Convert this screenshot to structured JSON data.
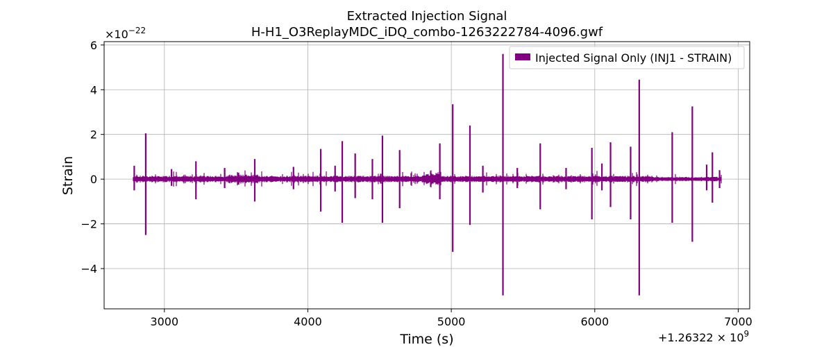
{
  "chart_data": {
    "type": "line",
    "title": "Extracted Injection Signal",
    "subtitle": "H-H1_O3ReplayMDC_iDQ_combo-1263222784-4096.gwf",
    "xlabel": "Time (s)",
    "ylabel": "Strain",
    "y_scale_label": "×10",
    "y_scale_exp": "−22",
    "x_offset_label": "+1.26322 × 10",
    "x_offset_exp": "9",
    "xlim": [
      2580,
      7080
    ],
    "ylim": [
      -5.8,
      6.15
    ],
    "xticks": [
      3000,
      4000,
      5000,
      6000,
      7000
    ],
    "xtick_labels": [
      "3000",
      "4000",
      "5000",
      "6000",
      "7000"
    ],
    "yticks": [
      -4,
      -2,
      0,
      2,
      4,
      6
    ],
    "ytick_labels": [
      "−4",
      "−2",
      "0",
      "2",
      "4",
      "6"
    ],
    "grid": true,
    "legend_position": "top-right",
    "series": [
      {
        "name": "Injected Signal Only (INJ1 - STRAIN)",
        "color": "#800080",
        "x_range": [
          2784,
          6880
        ],
        "noise_level": 0.15,
        "spikes": [
          {
            "x": 2790,
            "max": 0.6,
            "min": -0.5
          },
          {
            "x": 2870,
            "max": 2.05,
            "min": -2.5
          },
          {
            "x": 3050,
            "max": 0.45,
            "min": -0.3
          },
          {
            "x": 3220,
            "max": 0.8,
            "min": -0.9
          },
          {
            "x": 3420,
            "max": 0.5,
            "min": -0.4
          },
          {
            "x": 3630,
            "max": 0.9,
            "min": -1.0
          },
          {
            "x": 3900,
            "max": 0.55,
            "min": -0.45
          },
          {
            "x": 4090,
            "max": 1.35,
            "min": -1.45
          },
          {
            "x": 4190,
            "max": 0.6,
            "min": -0.55
          },
          {
            "x": 4240,
            "max": 1.7,
            "min": -1.95
          },
          {
            "x": 4330,
            "max": 1.15,
            "min": -0.85
          },
          {
            "x": 4450,
            "max": 0.9,
            "min": -0.9
          },
          {
            "x": 4520,
            "max": 1.95,
            "min": -1.95
          },
          {
            "x": 4640,
            "max": 1.3,
            "min": -1.3
          },
          {
            "x": 4920,
            "max": 1.6,
            "min": -0.9
          },
          {
            "x": 5010,
            "max": 3.35,
            "min": -3.25
          },
          {
            "x": 5130,
            "max": 2.4,
            "min": -2.05
          },
          {
            "x": 5220,
            "max": 0.6,
            "min": -0.6
          },
          {
            "x": 5360,
            "max": 5.6,
            "min": -5.2
          },
          {
            "x": 5460,
            "max": 0.5,
            "min": -0.4
          },
          {
            "x": 5620,
            "max": 1.6,
            "min": -1.35
          },
          {
            "x": 5800,
            "max": 0.5,
            "min": -0.45
          },
          {
            "x": 5980,
            "max": 1.4,
            "min": -1.8
          },
          {
            "x": 6050,
            "max": 0.7,
            "min": -0.5
          },
          {
            "x": 6110,
            "max": 1.65,
            "min": -1.25
          },
          {
            "x": 6250,
            "max": 1.45,
            "min": -1.8
          },
          {
            "x": 6310,
            "max": 4.45,
            "min": -5.2
          },
          {
            "x": 6540,
            "max": 2.1,
            "min": -1.95
          },
          {
            "x": 6680,
            "max": 3.25,
            "min": -2.8
          },
          {
            "x": 6780,
            "max": 0.65,
            "min": -0.5
          },
          {
            "x": 6820,
            "max": 1.2,
            "min": -1.05
          },
          {
            "x": 6870,
            "max": 0.4,
            "min": -0.4
          }
        ]
      }
    ]
  }
}
